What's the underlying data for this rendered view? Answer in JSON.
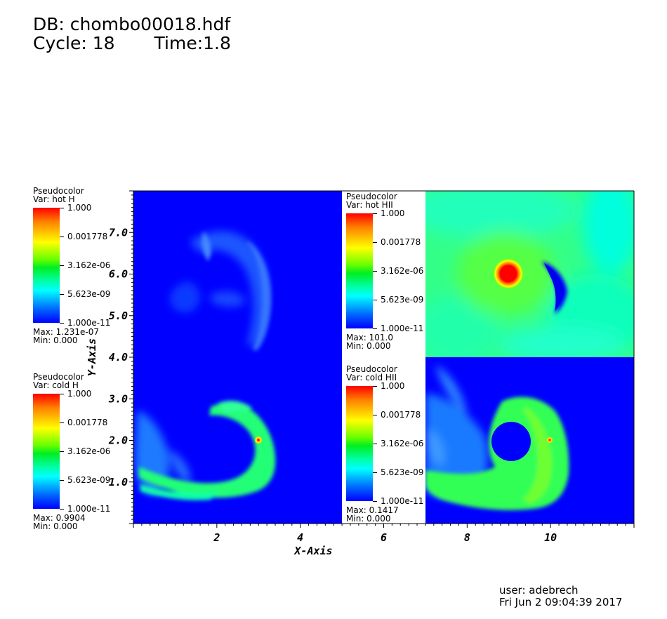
{
  "header": {
    "db": "DB: chombo00018.hdf",
    "cycle": "Cycle: 18",
    "time": "Time:1.8"
  },
  "legends": [
    {
      "id": "hot-h",
      "title": "Pseudocolor",
      "var": "Var: hot H",
      "max": "Max:  1.231e-07",
      "min": "Min:  0.000",
      "ticks": [
        "1.000",
        "0.001778",
        "3.162e-06",
        "5.623e-09",
        "1.000e-11"
      ]
    },
    {
      "id": "cold-h",
      "title": "Pseudocolor",
      "var": "Var: cold H",
      "max": "Max:  0.9904",
      "min": "Min:  0.000",
      "ticks": [
        "1.000",
        "0.001778",
        "3.162e-06",
        "5.623e-09",
        "1.000e-11"
      ]
    },
    {
      "id": "hot-hii",
      "title": "Pseudocolor",
      "var": "Var: hot HII",
      "max": "Max:  101.0",
      "min": "Min:  0.000",
      "ticks": [
        "1.000",
        "0.001778",
        "3.162e-06",
        "5.623e-09",
        "1.000e-11"
      ]
    },
    {
      "id": "cold-hii",
      "title": "Pseudocolor",
      "var": "Var: cold HII",
      "max": "Max:  0.1417",
      "min": "Min:  0.000",
      "ticks": [
        "1.000",
        "0.001778",
        "3.162e-06",
        "5.623e-09",
        "1.000e-11"
      ]
    }
  ],
  "chart_data": {
    "type": "heatmap",
    "xlabel": "X-Axis",
    "ylabel": "Y-Axis",
    "xlim": [
      0,
      12
    ],
    "ylim": [
      0,
      8
    ],
    "xticks": [
      {
        "v": 2,
        "l": "2"
      },
      {
        "v": 4,
        "l": "4"
      },
      {
        "v": 6,
        "l": "6"
      },
      {
        "v": 8,
        "l": "8"
      },
      {
        "v": 10,
        "l": "10"
      }
    ],
    "yticks": [
      {
        "v": 1,
        "l": "1.0"
      },
      {
        "v": 2,
        "l": "2.0"
      },
      {
        "v": 3,
        "l": "3.0"
      },
      {
        "v": 4,
        "l": "4.0"
      },
      {
        "v": 5,
        "l": "5.0"
      },
      {
        "v": 6,
        "l": "6.0"
      },
      {
        "v": 7,
        "l": "7.0"
      }
    ],
    "panels": [
      {
        "name": "hot H",
        "x": [
          0,
          6
        ],
        "y": [
          4,
          8
        ]
      },
      {
        "name": "hot HII",
        "x": [
          6,
          12
        ],
        "y": [
          4,
          8
        ]
      },
      {
        "name": "cold H",
        "x": [
          0,
          6
        ],
        "y": [
          0,
          4
        ]
      },
      {
        "name": "cold HII",
        "x": [
          6,
          12
        ],
        "y": [
          0,
          4
        ]
      }
    ]
  },
  "colors": {
    "low": "#0000ff",
    "mid": "#00ff44",
    "high": "#ff0000",
    "background_hot_hii": "#22ff99"
  },
  "footer": {
    "user": "user: adebrech",
    "date": "Fri Jun  2 09:04:39 2017"
  }
}
